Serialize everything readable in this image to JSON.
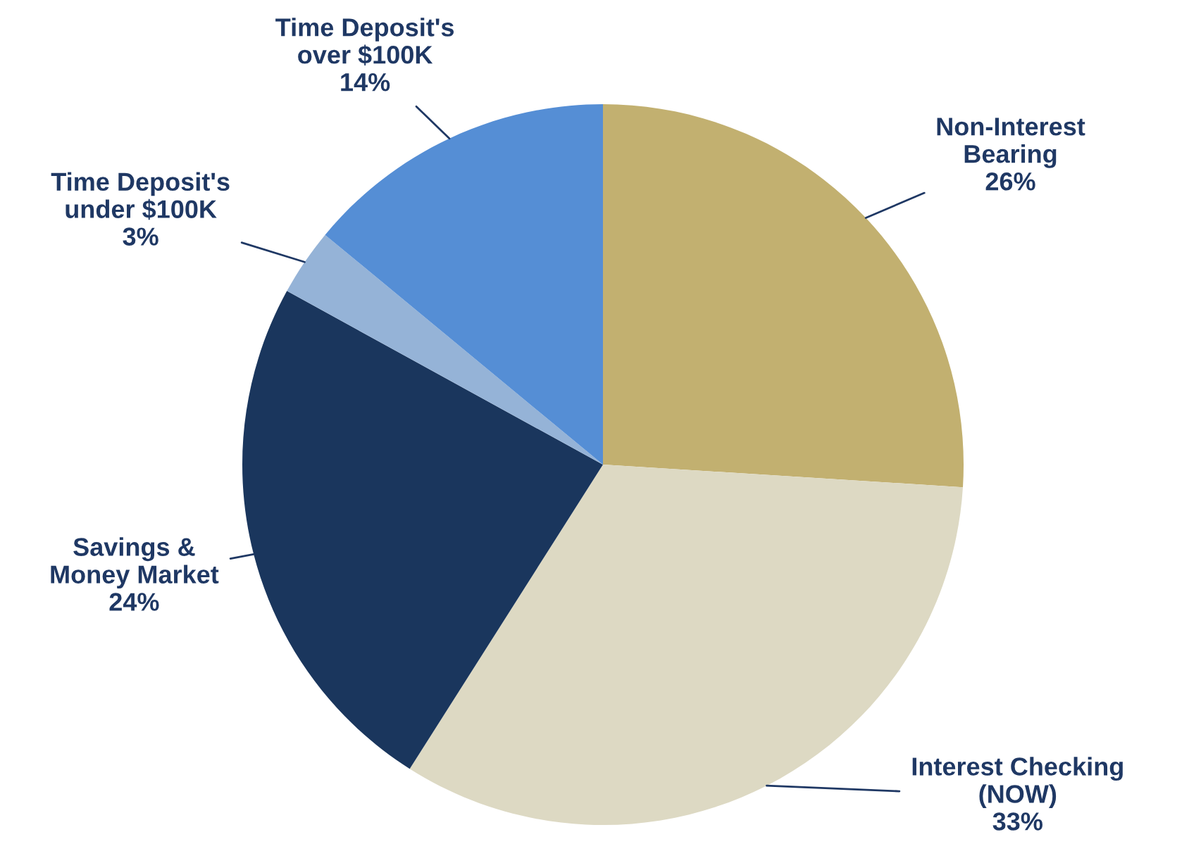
{
  "chart_data": {
    "type": "pie",
    "categories": [
      "Non-Interest\nBearing",
      "Interest Checking\n(NOW)",
      "Savings &\nMoney Market",
      "Time Deposit's\nunder $100K",
      "Time Deposit's\nover $100K"
    ],
    "values": [
      26,
      33,
      24,
      3,
      14
    ],
    "value_labels": [
      "26%",
      "33%",
      "24%",
      "3%",
      "14%"
    ],
    "colors": [
      "#c2b070",
      "#ddd9c3",
      "#1a365d",
      "#95b3d7",
      "#558ed5"
    ]
  }
}
